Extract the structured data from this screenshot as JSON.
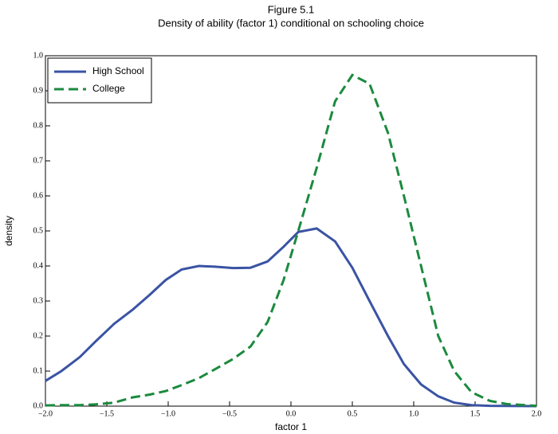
{
  "chart_data": {
    "type": "line",
    "title": "Figure 5.1",
    "subtitle": "Density of ability (factor 1) conditional on schooling choice",
    "x_label": "factor 1",
    "y_label": "density",
    "x": [
      -2.0,
      -1.87,
      -1.72,
      -1.59,
      -1.44,
      -1.29,
      -1.15,
      -1.02,
      -0.89,
      -0.75,
      -0.62,
      -0.47,
      -0.33,
      -0.19,
      -0.06,
      0.06,
      0.21,
      0.36,
      0.5,
      0.64,
      0.79,
      0.92,
      1.06,
      1.2,
      1.33,
      1.47,
      1.62,
      1.76,
      2.0
    ],
    "series": [
      {
        "name": "High School",
        "color": "#3a53a4",
        "dash": "solid",
        "values": [
          0.072,
          0.1,
          0.14,
          0.185,
          0.235,
          0.275,
          0.318,
          0.36,
          0.39,
          0.4,
          0.398,
          0.394,
          0.395,
          0.413,
          0.455,
          0.497,
          0.507,
          0.47,
          0.395,
          0.3,
          0.2,
          0.12,
          0.062,
          0.028,
          0.01,
          0.003,
          0.001,
          0.0005,
          0
        ]
      },
      {
        "name": "College",
        "color": "#1b8a3e",
        "dash": "dashed",
        "values": [
          0.002,
          0.003,
          0.003,
          0.005,
          0.01,
          0.025,
          0.033,
          0.043,
          0.06,
          0.08,
          0.105,
          0.135,
          0.17,
          0.24,
          0.36,
          0.5,
          0.68,
          0.87,
          0.945,
          0.92,
          0.78,
          0.6,
          0.4,
          0.2,
          0.1,
          0.04,
          0.015,
          0.006,
          0.001
        ]
      }
    ],
    "xlim": [
      -2,
      2
    ],
    "xticks": [
      {
        "value": -2,
        "label": "−2.0"
      },
      {
        "value": -1.5,
        "label": "−1.5"
      },
      {
        "value": -1,
        "label": "−1.0"
      },
      {
        "value": -0.5,
        "label": "−0.5"
      },
      {
        "value": 0,
        "label": "0.0"
      },
      0.5,
      {
        "value": 1,
        "label": "1.0"
      },
      1.5,
      {
        "value": 2,
        "label": "2.0"
      }
    ],
    "ylim": [
      0,
      1
    ],
    "yticks": [
      {
        "value": 0,
        "label": "0.0"
      },
      0.1,
      0.2,
      0.3,
      0.4,
      0.5,
      0.6,
      0.7,
      0.8,
      0.9,
      {
        "value": 1,
        "label": "1.0"
      }
    ],
    "legend": "upper left"
  }
}
